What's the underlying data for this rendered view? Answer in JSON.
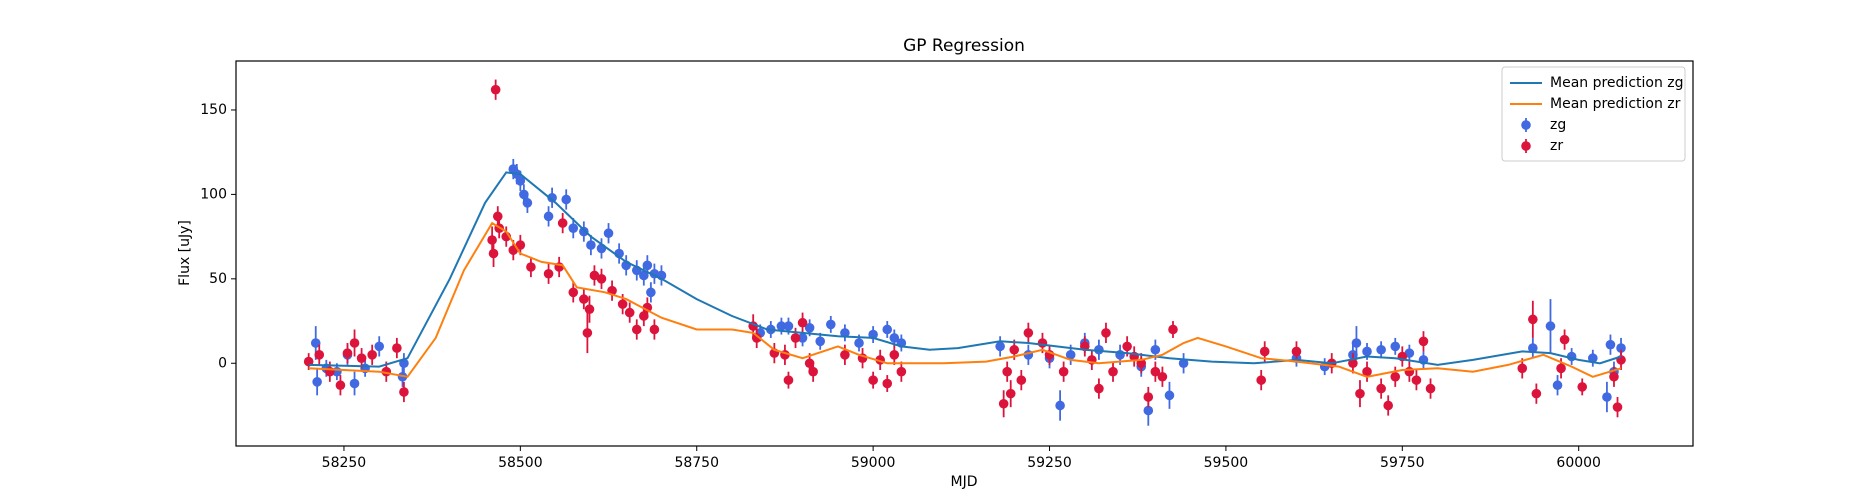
{
  "chart_data": {
    "type": "errorbar",
    "title": "GP Regression",
    "x_label": "MJD",
    "y_label": "Flux [uJy]",
    "xlim": [
      58097,
      60162
    ],
    "ylim": [
      -49,
      179
    ],
    "xticks": [
      58250,
      58500,
      58750,
      59000,
      59250,
      59500,
      59750,
      60000
    ],
    "yticks": [
      0,
      50,
      100,
      150
    ],
    "legend": "upper right",
    "lines": [
      {
        "name": "Mean prediction zg",
        "color": "#1f77b4",
        "x": [
          58200,
          58300,
          58340,
          58400,
          58450,
          58480,
          58500,
          58550,
          58600,
          58650,
          58700,
          58750,
          58800,
          58850,
          58900,
          58950,
          59000,
          59040,
          59080,
          59120,
          59180,
          59220,
          59260,
          59300,
          59360,
          59420,
          59480,
          59540,
          59600,
          59650,
          59700,
          59740,
          59800,
          59850,
          59920,
          59960,
          60000,
          60030,
          60060
        ],
        "values": [
          -1,
          -2,
          3,
          50,
          95,
          113,
          112,
          95,
          75,
          60,
          50,
          38,
          28,
          20,
          18,
          16,
          15,
          10,
          8,
          9,
          13,
          12,
          10,
          8,
          6,
          3,
          1,
          0,
          2,
          0,
          4,
          3,
          -1,
          2,
          7,
          6,
          2,
          0,
          4
        ]
      },
      {
        "name": "Mean prediction zr",
        "color": "#ff7f0e",
        "x": [
          58200,
          58300,
          58340,
          58380,
          58420,
          58460,
          58480,
          58500,
          58530,
          58560,
          58580,
          58620,
          58650,
          58700,
          58750,
          58800,
          58830,
          58860,
          58900,
          58950,
          58980,
          59020,
          59100,
          59160,
          59200,
          59240,
          59280,
          59320,
          59380,
          59410,
          59440,
          59460,
          59500,
          59550,
          59600,
          59660,
          59700,
          59750,
          59800,
          59850,
          59900,
          59950,
          59990,
          60020,
          60060
        ],
        "values": [
          -3,
          -5,
          -8,
          15,
          55,
          83,
          78,
          65,
          60,
          58,
          45,
          42,
          38,
          27,
          20,
          20,
          18,
          8,
          3,
          10,
          5,
          0,
          0,
          1,
          4,
          8,
          2,
          0,
          2,
          5,
          12,
          15,
          10,
          3,
          1,
          -2,
          -8,
          -4,
          -3,
          -5,
          -1,
          5,
          -2,
          -8,
          -3
        ]
      }
    ],
    "series": [
      {
        "name": "zg",
        "color": "#4169e1",
        "x": [
          58210,
          58212,
          58225,
          58240,
          58255,
          58265,
          58280,
          58300,
          58335,
          58333,
          58490,
          58495,
          58500,
          58505,
          58510,
          58540,
          58545,
          58565,
          58575,
          58590,
          58600,
          58615,
          58625,
          58640,
          58650,
          58665,
          58675,
          58680,
          58685,
          58690,
          58700,
          58840,
          58855,
          58870,
          58880,
          58900,
          58910,
          58925,
          58940,
          58960,
          58980,
          59000,
          59020,
          59030,
          59040,
          59180,
          59220,
          59250,
          59265,
          59280,
          59300,
          59320,
          59350,
          59380,
          59390,
          59400,
          59420,
          59440,
          59600,
          59640,
          59680,
          59685,
          59700,
          59720,
          59740,
          59760,
          59780,
          59935,
          59960,
          59970,
          59990,
          60020,
          60040,
          60045,
          60050,
          60060
        ],
        "values": [
          12,
          -11,
          -3,
          -5,
          5,
          -12,
          -3,
          10,
          0,
          -8,
          115,
          112,
          108,
          100,
          95,
          87,
          98,
          97,
          80,
          78,
          70,
          68,
          77,
          65,
          58,
          55,
          52,
          58,
          42,
          53,
          52,
          18,
          20,
          22,
          22,
          15,
          21,
          13,
          23,
          18,
          12,
          17,
          20,
          15,
          12,
          10,
          5,
          3,
          -25,
          5,
          12,
          8,
          5,
          -2,
          -28,
          8,
          -19,
          0,
          3,
          -2,
          5,
          12,
          7,
          8,
          10,
          6,
          2,
          9,
          22,
          -13,
          4,
          3,
          -20,
          11,
          -5,
          9
        ],
        "errors": [
          10,
          8,
          5,
          5,
          6,
          7,
          5,
          6,
          6,
          6,
          6,
          6,
          6,
          6,
          6,
          6,
          6,
          6,
          6,
          6,
          6,
          6,
          6,
          6,
          6,
          6,
          6,
          6,
          6,
          6,
          6,
          5,
          5,
          5,
          5,
          5,
          5,
          5,
          5,
          5,
          5,
          5,
          5,
          5,
          5,
          6,
          6,
          6,
          9,
          6,
          6,
          6,
          6,
          6,
          9,
          6,
          8,
          6,
          5,
          5,
          6,
          10,
          5,
          5,
          5,
          5,
          5,
          6,
          16,
          6,
          5,
          5,
          9,
          6,
          6,
          6
        ]
      },
      {
        "name": "zr",
        "color": "#dc143c",
        "x": [
          58200,
          58215,
          58230,
          58245,
          58255,
          58265,
          58275,
          58290,
          58310,
          58325,
          58335,
          58465,
          58460,
          58462,
          58468,
          58470,
          58480,
          58490,
          58500,
          58515,
          58540,
          58555,
          58560,
          58575,
          58590,
          58595,
          58598,
          58605,
          58615,
          58630,
          58645,
          58655,
          58665,
          58675,
          58680,
          58690,
          58830,
          58835,
          58860,
          58875,
          58880,
          58890,
          58900,
          58910,
          58915,
          58960,
          58985,
          59000,
          59010,
          59020,
          59030,
          59040,
          59185,
          59190,
          59195,
          59200,
          59210,
          59220,
          59240,
          59250,
          59270,
          59300,
          59310,
          59320,
          59330,
          59340,
          59360,
          59370,
          59380,
          59390,
          59400,
          59410,
          59425,
          59550,
          59555,
          59600,
          59650,
          59680,
          59690,
          59700,
          59720,
          59730,
          59740,
          59750,
          59760,
          59770,
          59780,
          59790,
          59920,
          59935,
          59940,
          59975,
          59980,
          60005,
          60050,
          60055,
          60060
        ],
        "values": [
          1,
          5,
          -5,
          -13,
          6,
          12,
          3,
          5,
          -5,
          9,
          -17,
          162,
          73,
          65,
          87,
          80,
          75,
          67,
          70,
          57,
          53,
          57,
          83,
          42,
          38,
          18,
          32,
          52,
          50,
          43,
          35,
          30,
          20,
          28,
          33,
          20,
          22,
          15,
          6,
          5,
          -10,
          15,
          24,
          0,
          -5,
          5,
          3,
          -10,
          2,
          -12,
          5,
          -5,
          -24,
          -5,
          -18,
          8,
          -10,
          18,
          12,
          5,
          -5,
          10,
          2,
          -15,
          18,
          -5,
          10,
          4,
          0,
          -20,
          -5,
          -8,
          20,
          -10,
          7,
          7,
          0,
          0,
          -18,
          -5,
          -15,
          -25,
          -8,
          4,
          -5,
          -10,
          13,
          -15,
          -3,
          26,
          -18,
          -3,
          14,
          -14,
          -8,
          -26,
          2
        ],
        "errors": [
          5,
          6,
          6,
          6,
          6,
          8,
          6,
          6,
          6,
          6,
          6,
          6,
          8,
          8,
          6,
          6,
          6,
          6,
          6,
          6,
          6,
          6,
          6,
          6,
          6,
          12,
          8,
          6,
          6,
          6,
          6,
          6,
          6,
          6,
          6,
          6,
          7,
          6,
          6,
          6,
          5,
          6,
          6,
          6,
          6,
          6,
          6,
          5,
          6,
          5,
          6,
          6,
          8,
          6,
          8,
          6,
          6,
          6,
          6,
          6,
          6,
          6,
          6,
          6,
          6,
          6,
          6,
          6,
          6,
          6,
          6,
          6,
          5,
          6,
          6,
          6,
          6,
          6,
          8,
          6,
          6,
          6,
          6,
          6,
          6,
          6,
          6,
          6,
          6,
          11,
          6,
          6,
          6,
          5,
          6,
          6,
          6
        ]
      }
    ]
  }
}
